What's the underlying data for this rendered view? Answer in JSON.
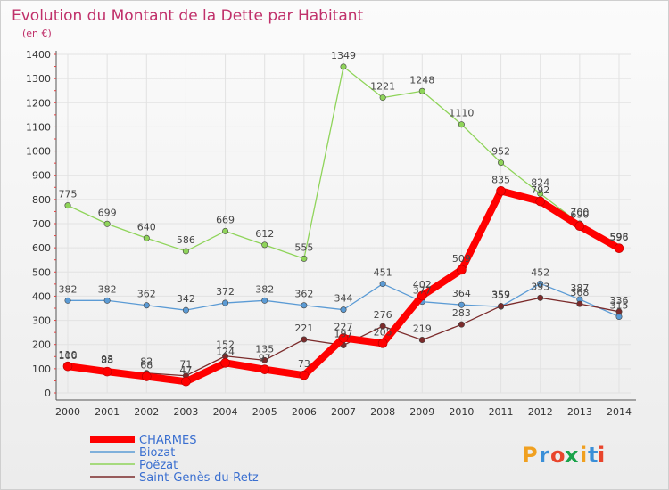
{
  "chart_data": {
    "type": "line",
    "title": "Evolution du Montant de la Dette par Habitant",
    "subtitle": "(en €)",
    "xlabel": "",
    "ylabel": "",
    "ylim": [
      0,
      1400
    ],
    "yticks": [
      0,
      100,
      200,
      300,
      400,
      500,
      600,
      700,
      800,
      900,
      1000,
      1100,
      1200,
      1300,
      1400
    ],
    "x": [
      "2000",
      "2001",
      "2002",
      "2003",
      "2004",
      "2005",
      "2006",
      "2007",
      "2008",
      "2009",
      "2010",
      "2011",
      "2012",
      "2013",
      "2014"
    ],
    "grid": true,
    "legend_position": "bottom-left",
    "series": [
      {
        "name": "CHARMES",
        "color": "#ff0000",
        "values": [
          110,
          88,
          68,
          47,
          124,
          97,
          73,
          227,
          205,
          402,
          509,
          835,
          792,
          690,
          598
        ]
      },
      {
        "name": "Biozat",
        "color": "#5b9bd5",
        "values": [
          382,
          382,
          362,
          342,
          372,
          382,
          362,
          344,
          451,
          377,
          364,
          357,
          452,
          387,
          315
        ]
      },
      {
        "name": "Poëzat",
        "color": "#8fd45a",
        "values": [
          775,
          699,
          640,
          586,
          669,
          612,
          555,
          1349,
          1221,
          1248,
          1110,
          952,
          824,
          700,
          596
        ]
      },
      {
        "name": "Saint-Genès-du-Retz",
        "color": "#7b2b2b",
        "values": [
          106,
          93,
          82,
          71,
          152,
          135,
          221,
          197,
          276,
          219,
          283,
          359,
          393,
          368,
          336
        ]
      }
    ]
  },
  "brand": {
    "text": "Proxiti",
    "letters": [
      "P",
      "r",
      "o",
      "x",
      "i",
      "t",
      "i"
    ],
    "colors": [
      "#f0a020",
      "#3a8fd8",
      "#e9452c",
      "#1aa34a",
      "#f0a020",
      "#3a8fd8",
      "#e9452c"
    ]
  }
}
